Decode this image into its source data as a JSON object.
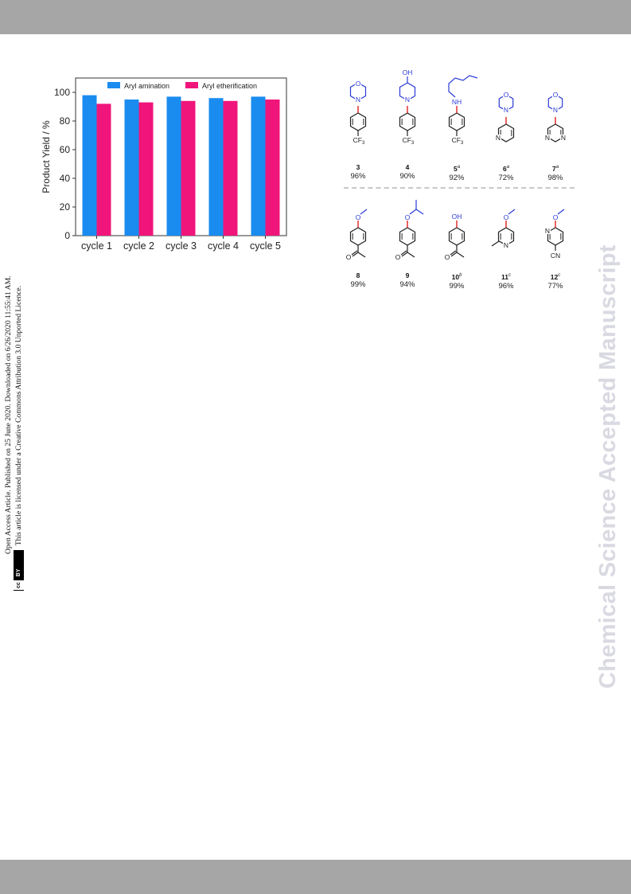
{
  "license": {
    "line1": "Open Access Article. Published on 25 June 2020. Downloaded on 6/26/2020 11:55:41 AM.",
    "line2": "This article is licensed under a Creative Commons Attribution 3.0 Unported Licence.",
    "badge_cc": "cc",
    "badge_by": "BY"
  },
  "watermark": "Chemical Science Accepted Manuscript",
  "chart_data": {
    "type": "bar",
    "categories": [
      "cycle 1",
      "cycle 2",
      "cycle 3",
      "cycle 4",
      "cycle 5"
    ],
    "series": [
      {
        "name": "Aryl amination",
        "values": [
          98,
          95,
          97,
          96,
          97
        ],
        "color": "#1a8cf0"
      },
      {
        "name": "Aryl etherification",
        "values": [
          92,
          93,
          94,
          94,
          95
        ],
        "color": "#f0157a"
      }
    ],
    "ylabel": "Product Yield / %",
    "xlabel": "",
    "ylim": [
      0,
      110
    ],
    "yticks": [
      "0",
      "20",
      "40",
      "60",
      "80",
      "100"
    ],
    "grid": false,
    "legend": "top"
  },
  "compounds": {
    "row1": [
      {
        "id": "3",
        "sup": "",
        "yield": "96%",
        "group": "CF3",
        "amine": "morpholine"
      },
      {
        "id": "4",
        "sup": "",
        "yield": "90%",
        "group": "CF3",
        "amine": "4-hydroxypiperidine",
        "oh": "OH"
      },
      {
        "id": "5",
        "sup": "a",
        "yield": "92%",
        "group": "CF3",
        "amine": "hexylamine",
        "nh": "NH"
      },
      {
        "id": "6",
        "sup": "a",
        "yield": "72%",
        "ring": "pyridine",
        "amine": "morpholine"
      },
      {
        "id": "7",
        "sup": "a",
        "yield": "98%",
        "ring": "pyrimidine",
        "amine": "morpholine"
      }
    ],
    "row2": [
      {
        "id": "8",
        "sup": "",
        "yield": "99%"
      },
      {
        "id": "9",
        "sup": "",
        "yield": "94%"
      },
      {
        "id": "10",
        "sup": "b",
        "yield": "99%",
        "oh": "OH"
      },
      {
        "id": "11",
        "sup": "c",
        "yield": "96%"
      },
      {
        "id": "12",
        "sup": "c",
        "yield": "77%",
        "cn": "CN"
      }
    ],
    "atoms": {
      "N": "N",
      "O": "O",
      "CF3": "CF",
      "sub3": "3"
    }
  }
}
